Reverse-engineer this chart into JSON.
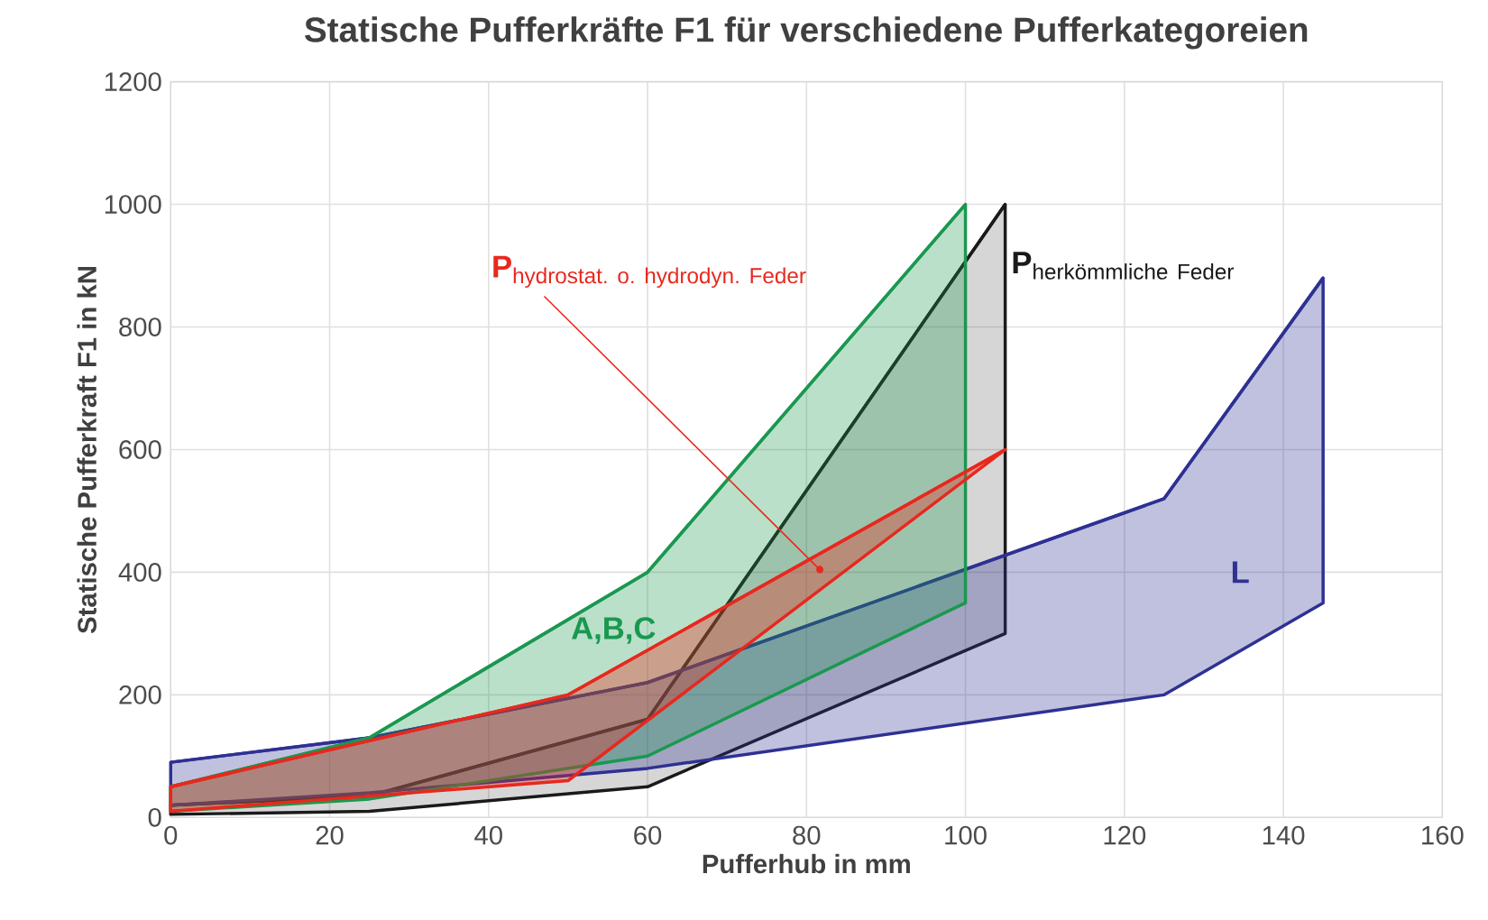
{
  "chart_data": {
    "type": "line",
    "title": "Statische Pufferkräfte F1 für verschiedene Pufferkategoreien",
    "xlabel": "Pufferhub in mm",
    "ylabel": "Statische Pufferkraft F1  in  kN",
    "xlim": [
      0,
      160
    ],
    "xticks": [
      0,
      20,
      40,
      60,
      80,
      100,
      120,
      140,
      160
    ],
    "ylim": [
      0,
      1200
    ],
    "yticks": [
      0,
      200,
      400,
      600,
      800,
      1000,
      1200
    ],
    "grid": true,
    "series": [
      {
        "name": "\\mathbf{P}_{\\mathrm{herkömmliche\\ Feder}}",
        "color": "#1a1a1a",
        "x": [
          0,
          25,
          60,
          105
        ],
        "values": [
          20,
          35,
          160,
          1000
        ],
        "lower": [
          5,
          10,
          50,
          300
        ],
        "upper": [
          20,
          35,
          160,
          1000
        ]
      },
      {
        "name": "L",
        "color": "#2e3192",
        "x": [
          0,
          25,
          60,
          125,
          145
        ],
        "values": [
          90,
          130,
          220,
          520,
          880
        ],
        "lower": [
          20,
          40,
          80,
          200,
          350
        ],
        "upper": [
          90,
          130,
          220,
          520,
          880
        ]
      },
      {
        "name": "A,B,C",
        "color": "#1a9850",
        "x": [
          0,
          25,
          60,
          100
        ],
        "values": [
          50,
          130,
          400,
          1000
        ],
        "lower": [
          10,
          30,
          100,
          350
        ],
        "upper": [
          50,
          130,
          400,
          1000
        ]
      },
      {
        "name": "\\mathbf{P}_{\\mathrm{hydrostat.\\ o.\\ hydrodyn.\\ Feder}}",
        "color": "#e8281e",
        "x": [
          0,
          50,
          105
        ],
        "values": [
          50,
          200,
          600
        ],
        "lower": [
          10,
          60,
          600
        ],
        "upper": [
          50,
          200,
          600
        ]
      }
    ]
  }
}
